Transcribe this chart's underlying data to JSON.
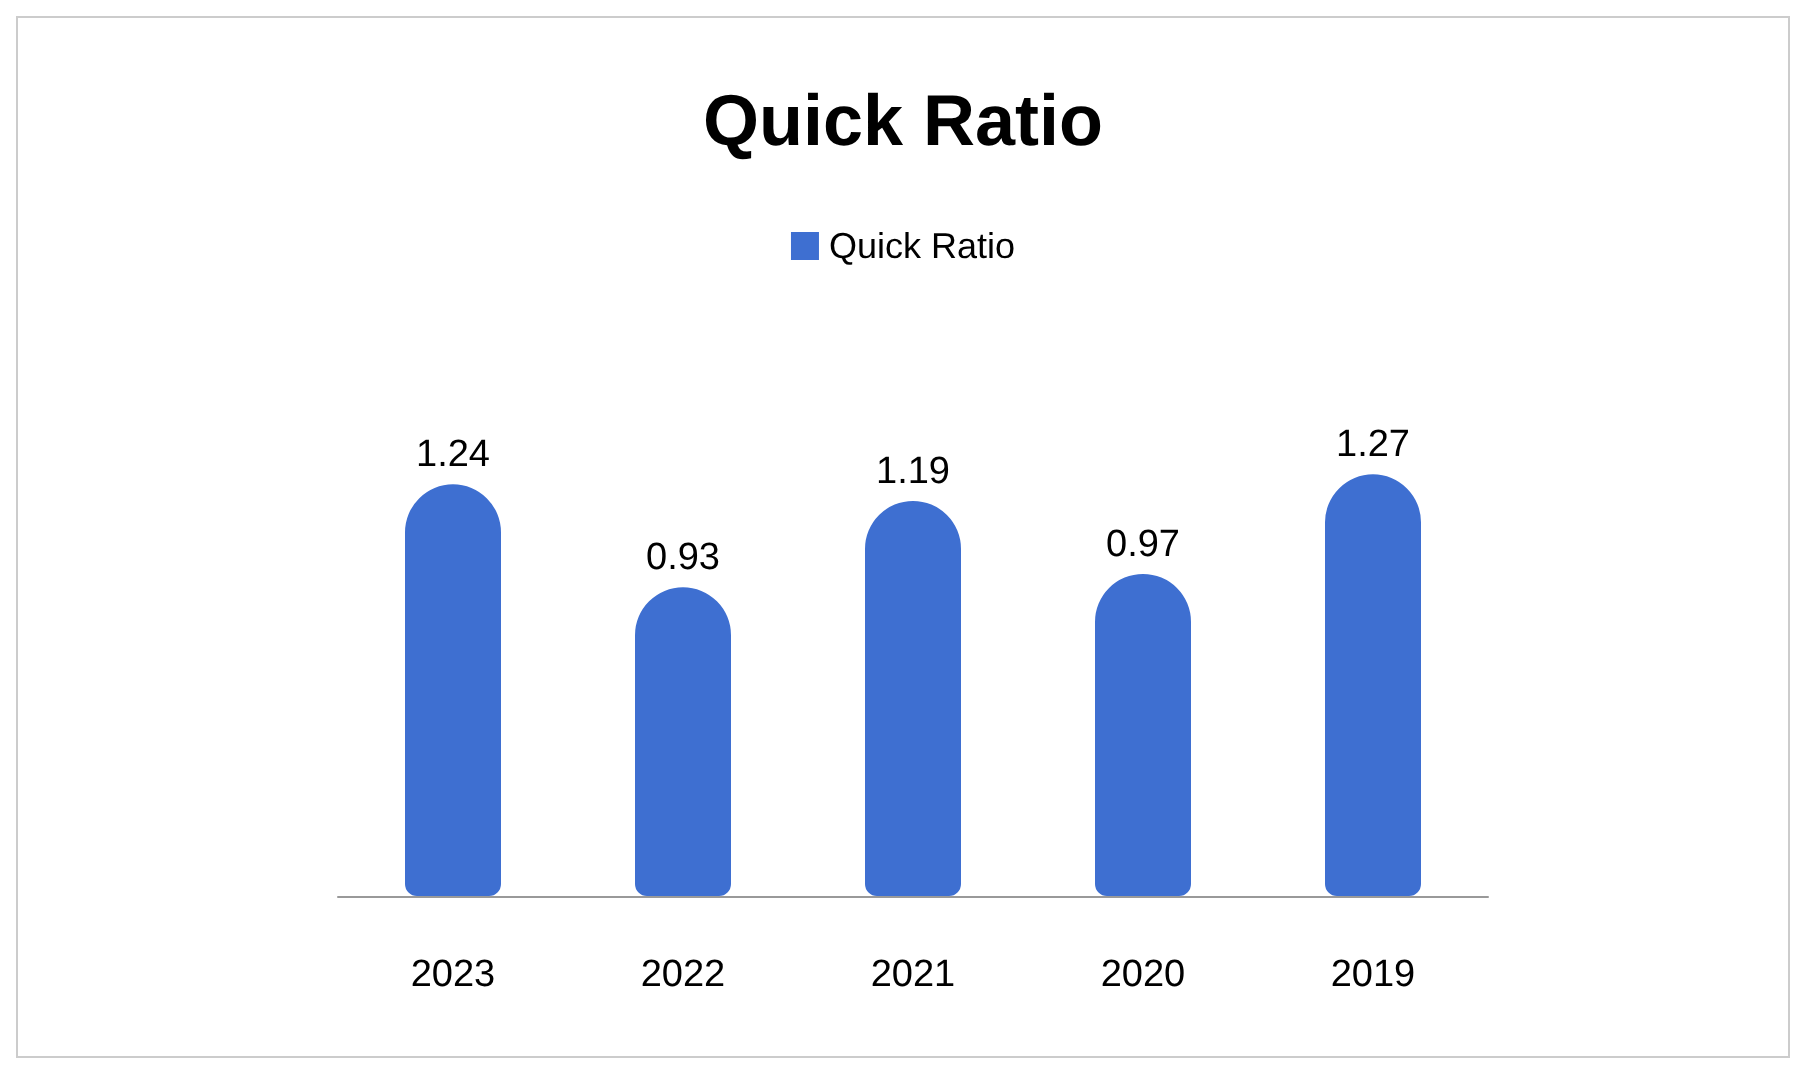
{
  "chart_data": {
    "type": "bar",
    "title": "Quick Ratio",
    "categories": [
      "2023",
      "2022",
      "2021",
      "2020",
      "2019"
    ],
    "series": [
      {
        "name": "Quick Ratio",
        "color": "#3e6fd1",
        "values": [
          1.24,
          0.93,
          1.19,
          0.97,
          1.27
        ]
      }
    ],
    "data_labels": true,
    "legend": "top",
    "grid": false
  }
}
